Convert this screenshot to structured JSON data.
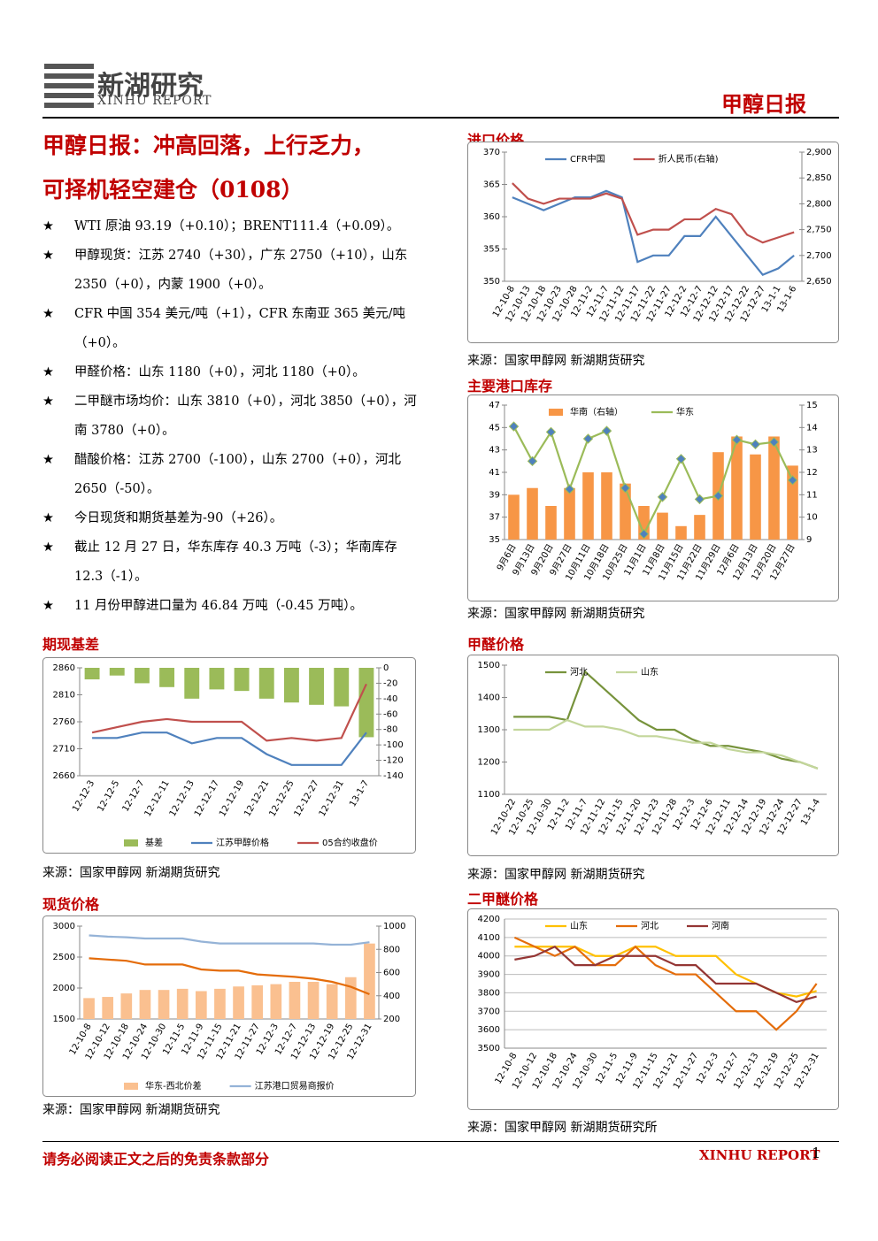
{
  "header": {
    "logo_cn": "新湖研究",
    "logo_en": "XINHU REPORT",
    "report_name": "甲醇日报"
  },
  "title": [
    "甲醇日报：冲高回落，上行乏力，",
    "可择机轻空建仓（0108）"
  ],
  "bullets": [
    "WTI 原油 93.19（+0.10）；BRENT111.4（+0.09）。",
    "甲醇现货：江苏 2740（+30），广东 2750（+10），山东 2350（+0），内蒙 1900（+0）。",
    "CFR 中国 354 美元/吨（+1），CFR 东南亚 365 美元/吨（+0）。",
    "甲醛价格：山东 1180（+0），河北 1180（+0）。",
    "二甲醚市场均价：山东 3810（+0），河北 3850（+0），河南 3780（+0）。",
    "醋酸价格：江苏 2700（-100），山东 2700（+0），河北 2650（-50）。",
    "今日现货和期货基差为-90（+26）。",
    "截止 12 月 27 日，华东库存 40.3 万吨（-3）；华南库存 12.3（-1）。",
    "11 月份甲醇进口量为 46.84 万吨（-0.45 万吨）。"
  ],
  "footer": {
    "disclaimer": "请务必阅读正文之后的免责条款部分",
    "brand": "XINHU REPORT",
    "page": "1"
  },
  "chart_data": [
    {
      "type": "combo",
      "heading": "进口价格",
      "source": "来源：国家甲醇网  新湖期货研究",
      "legend": "top",
      "categories": [
        "12-10-8",
        "12-10-13",
        "12-10-18",
        "12-10-23",
        "12-10-28",
        "12-11-2",
        "12-11-7",
        "12-11-12",
        "12-11-17",
        "12-11-22",
        "12-11-27",
        "12-12-2",
        "12-12-7",
        "12-12-12",
        "12-12-17",
        "12-12-22",
        "12-12-27",
        "13-1-1",
        "13-1-6"
      ],
      "ylim": [
        350,
        370
      ],
      "yticks": [
        350,
        355,
        360,
        365,
        370
      ],
      "y2lim": [
        2650,
        2900
      ],
      "y2ticks": [
        {
          "value": 2650,
          "label": "2,650"
        },
        {
          "value": 2700,
          "label": "2,700"
        },
        {
          "value": 2750,
          "label": "2,750"
        },
        {
          "value": 2800,
          "label": "2,800"
        },
        {
          "value": 2850,
          "label": "2,850"
        },
        {
          "value": 2900,
          "label": "2,900"
        }
      ],
      "series": [
        {
          "name": "CFR中国",
          "type": "line",
          "color": "#4f81bd",
          "values": [
            363,
            362,
            361,
            362,
            363,
            363,
            364,
            363,
            353,
            354,
            354,
            357,
            357,
            360,
            357,
            354,
            351,
            352,
            354
          ]
        },
        {
          "name": "折人民币(右轴)",
          "type": "line",
          "axis": "y2",
          "color": "#c0504d",
          "values": [
            2840,
            2810,
            2800,
            2810,
            2810,
            2810,
            2820,
            2810,
            2740,
            2750,
            2750,
            2770,
            2770,
            2790,
            2780,
            2740,
            2725,
            2735,
            2745
          ]
        }
      ]
    },
    {
      "type": "combo",
      "heading": "主要港口库存",
      "source": "来源：国家甲醇网  新湖期货研究",
      "legend": "top",
      "categories": [
        "9月6日",
        "9月13日",
        "9月20日",
        "9月27日",
        "10月11日",
        "10月18日",
        "10月25日",
        "11月1日",
        "11月8日",
        "11月15日",
        "11月22日",
        "11月29日",
        "12月6日",
        "12月13日",
        "12月20日",
        "12月27日"
      ],
      "ylim": [
        35,
        47
      ],
      "yticks": [
        35,
        37,
        39,
        41,
        43,
        45,
        47
      ],
      "y2lim": [
        9,
        15
      ],
      "y2ticks": [
        9,
        10,
        11,
        12,
        13,
        14,
        15
      ],
      "series": [
        {
          "name": "华南（右轴）",
          "type": "bar",
          "axis": "y2",
          "color": "#f79646",
          "values": [
            11,
            11.3,
            10.5,
            11.3,
            12,
            12,
            11.5,
            10.5,
            10.2,
            9.6,
            10.1,
            12.9,
            13.6,
            12.8,
            13.6,
            12.3
          ]
        },
        {
          "name": "华东",
          "type": "line",
          "color": "#9bbb59",
          "marker": "diamond",
          "marker_color": "#4f81bd",
          "values": [
            45.1,
            42,
            44.6,
            39.5,
            44,
            44.7,
            39.6,
            35.5,
            38.8,
            42.2,
            38.6,
            38.9,
            43.9,
            43.5,
            43.7,
            40.3
          ]
        }
      ]
    },
    {
      "type": "combo",
      "heading": "期现基差",
      "source": "来源：国家甲醇网  新湖期货研究",
      "legend": "bottom",
      "categories": [
        "12-12-3",
        "12-12-5",
        "12-12-7",
        "12-12-11",
        "12-12-13",
        "12-12-17",
        "12-12-19",
        "12-12-21",
        "12-12-25",
        "12-12-27",
        "12-12-31",
        "13-1-7"
      ],
      "ylim": [
        2660,
        2860
      ],
      "yticks": [
        2660,
        2710,
        2760,
        2810,
        2860
      ],
      "y2lim": [
        -140,
        0
      ],
      "y2ticks": [
        -140,
        -120,
        -100,
        -80,
        -60,
        -40,
        -20,
        0
      ],
      "series": [
        {
          "name": "基差",
          "type": "bar",
          "axis": "y2",
          "color": "#9bbb59",
          "values": [
            -15,
            -10,
            -20,
            -25,
            -40,
            -28,
            -30,
            -40,
            -45,
            -48,
            -50,
            -90
          ]
        },
        {
          "name": "江苏甲醇价格",
          "type": "line",
          "color": "#4f81bd",
          "values": [
            2730,
            2730,
            2740,
            2740,
            2720,
            2730,
            2730,
            2700,
            2680,
            2680,
            2680,
            2740
          ]
        },
        {
          "name": "05合约收盘价",
          "type": "line",
          "color": "#c0504d",
          "values": [
            2740,
            2750,
            2760,
            2765,
            2760,
            2760,
            2760,
            2725,
            2730,
            2725,
            2730,
            2830
          ]
        }
      ]
    },
    {
      "type": "combo",
      "heading": "甲醛价格",
      "source": "来源：国家甲醇网  新湖期货研究",
      "legend": "top",
      "categories": [
        "12-10-22",
        "12-10-25",
        "12-10-30",
        "12-11-2",
        "12-11-7",
        "12-11-12",
        "12-11-15",
        "12-11-20",
        "12-11-23",
        "12-11-28",
        "12-12-3",
        "12-12-6",
        "12-12-11",
        "12-12-14",
        "12-12-19",
        "12-12-24",
        "12-12-27",
        "13-1-4"
      ],
      "ylim": [
        1100,
        1500
      ],
      "yticks": [
        1100,
        1200,
        1300,
        1400,
        1500
      ],
      "series": [
        {
          "name": "河北",
          "type": "line",
          "color": "#77933c",
          "values": [
            1340,
            1340,
            1340,
            1330,
            1480,
            1430,
            1380,
            1330,
            1300,
            1300,
            1270,
            1250,
            1250,
            1240,
            1230,
            1210,
            1200,
            1180
          ]
        },
        {
          "name": "山东",
          "type": "line",
          "color": "#c3d69b",
          "values": [
            1300,
            1300,
            1300,
            1330,
            1310,
            1310,
            1300,
            1280,
            1280,
            1270,
            1260,
            1260,
            1240,
            1230,
            1230,
            1220,
            1200,
            1180
          ]
        }
      ]
    },
    {
      "type": "combo",
      "heading": "现货价格",
      "source": "来源：国家甲醇网  新湖期货研究",
      "legend": "bottom",
      "categories": [
        "12-10-8",
        "12-10-12",
        "12-10-18",
        "12-10-24",
        "12-10-30",
        "12-11-5",
        "12-11-9",
        "12-11-15",
        "12-11-21",
        "12-11-27",
        "12-12-3",
        "12-12-7",
        "12-12-13",
        "12-12-19",
        "12-12-25",
        "12-12-31"
      ],
      "ylim": [
        1500,
        3000
      ],
      "yticks": [
        1500,
        2000,
        2500,
        3000
      ],
      "y2lim": [
        200,
        1000
      ],
      "y2ticks": [
        200,
        400,
        600,
        800,
        1000
      ],
      "series": [
        {
          "name": "华东-西北价差",
          "type": "bar",
          "axis": "y2",
          "color": "#fac090",
          "values": [
            380,
            390,
            420,
            450,
            450,
            460,
            440,
            460,
            480,
            490,
            500,
            520,
            520,
            500,
            560,
            850
          ]
        },
        {
          "name": "江苏港口贸易商报价",
          "type": "line",
          "color": "#95b3d7",
          "values": [
            2850,
            2830,
            2820,
            2800,
            2800,
            2800,
            2750,
            2720,
            2720,
            2720,
            2720,
            2720,
            2720,
            2700,
            2700,
            2740
          ]
        },
        {
          "type": "line",
          "color": "#e46c0a",
          "values": [
            2480,
            2460,
            2440,
            2380,
            2380,
            2380,
            2300,
            2280,
            2280,
            2220,
            2200,
            2180,
            2150,
            2100,
            2020,
            1900
          ]
        }
      ]
    },
    {
      "type": "combo",
      "heading": "二甲醚价格",
      "source": "来源：国家甲醇网  新湖期货研究所",
      "legend": "top",
      "grid": true,
      "categories": [
        "12-10-8",
        "12-10-12",
        "12-10-18",
        "12-10-24",
        "12-10-30",
        "12-11-5",
        "12-11-9",
        "12-11-15",
        "12-11-21",
        "12-11-27",
        "12-12-3",
        "12-12-7",
        "12-12-13",
        "12-12-19",
        "12-12-25",
        "12-12-31"
      ],
      "ylim": [
        3500,
        4200
      ],
      "yticks": [
        3500,
        3600,
        3700,
        3800,
        3900,
        4000,
        4100,
        4200
      ],
      "series": [
        {
          "name": "山东",
          "type": "line",
          "color": "#ffc000",
          "values": [
            4050,
            4050,
            4050,
            4050,
            4000,
            4000,
            4050,
            4050,
            4000,
            4000,
            4000,
            3900,
            3850,
            3800,
            3780,
            3810
          ]
        },
        {
          "name": "河北",
          "type": "line",
          "color": "#e46c0a",
          "values": [
            4100,
            4050,
            4000,
            4050,
            3950,
            3950,
            4050,
            3950,
            3900,
            3900,
            3800,
            3700,
            3700,
            3600,
            3700,
            3850
          ]
        },
        {
          "name": "河南",
          "type": "line",
          "color": "#943634",
          "values": [
            3980,
            4000,
            4050,
            3950,
            3950,
            4000,
            4000,
            4000,
            3950,
            3950,
            3850,
            3850,
            3850,
            3800,
            3750,
            3780
          ]
        }
      ]
    }
  ]
}
